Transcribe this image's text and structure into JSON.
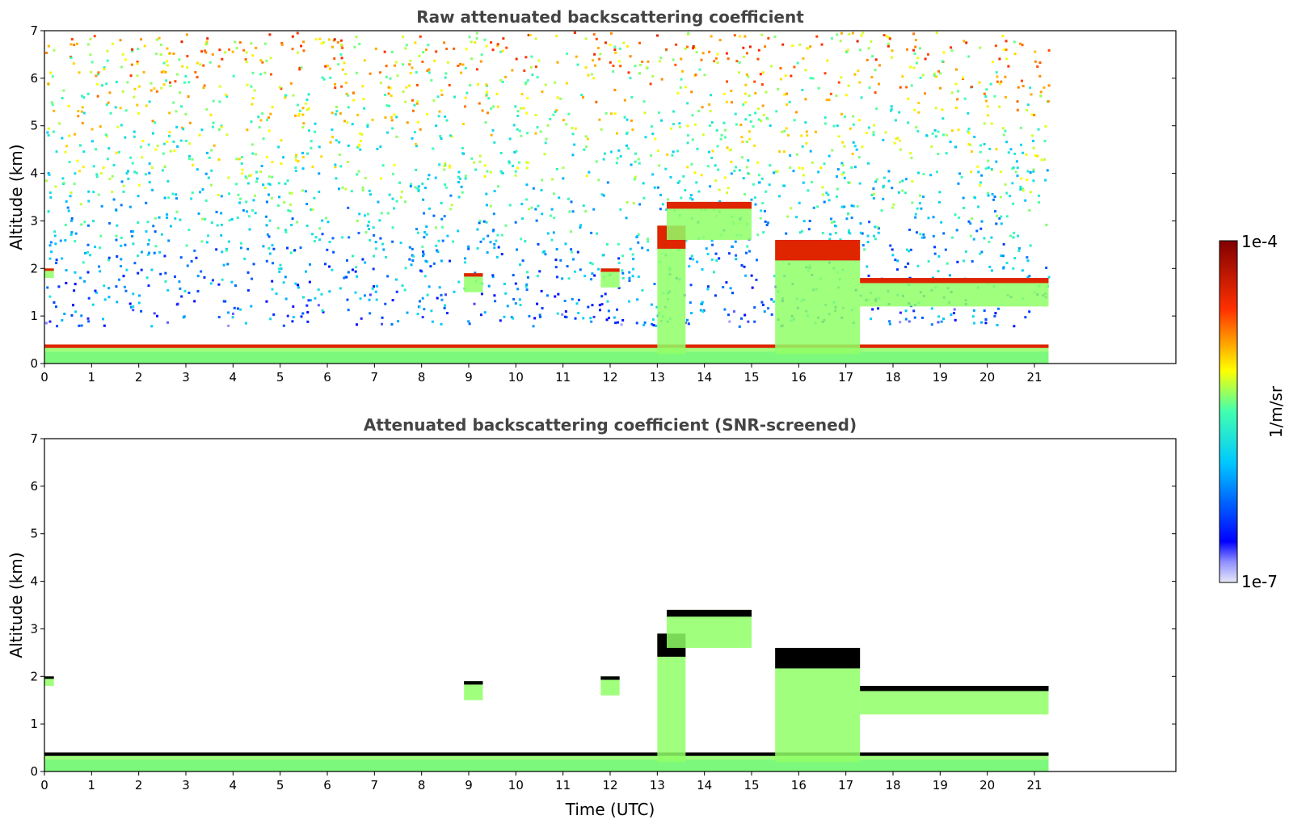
{
  "chart_data": [
    {
      "type": "heatmap",
      "title": "Raw attenuated backscattering coefficient",
      "xlabel": "",
      "ylabel": "Altitude (km)",
      "xlim": [
        0,
        24
      ],
      "ylim": [
        0,
        7
      ],
      "xticks": [
        "0",
        "1",
        "2",
        "3",
        "4",
        "5",
        "6",
        "7",
        "8",
        "9",
        "10",
        "11",
        "12",
        "13",
        "14",
        "15",
        "16",
        "17",
        "18",
        "19",
        "20",
        "21"
      ],
      "yticks": [
        "0",
        "1",
        "2",
        "3",
        "4",
        "5",
        "6",
        "7"
      ],
      "data_end_time": 21.3,
      "grid": false,
      "noise": true,
      "features": [
        {
          "name": "boundary layer",
          "t": [
            0,
            21.3
          ],
          "z": [
            0,
            0.4
          ],
          "level": "high"
        },
        {
          "name": "cloud",
          "t": [
            13.0,
            13.6
          ],
          "z": [
            0.2,
            2.9
          ],
          "level": "high"
        },
        {
          "name": "cloud",
          "t": [
            15.5,
            17.3
          ],
          "z": [
            0.2,
            2.6
          ],
          "level": "high"
        },
        {
          "name": "cloud",
          "t": [
            11.8,
            12.2
          ],
          "z": [
            1.6,
            2.0
          ],
          "level": "high"
        },
        {
          "name": "cloud",
          "t": [
            13.2,
            15.0
          ],
          "z": [
            2.6,
            3.4
          ],
          "level": "high"
        },
        {
          "name": "cloud",
          "t": [
            17.3,
            21.3
          ],
          "z": [
            1.2,
            1.8
          ],
          "level": "high"
        },
        {
          "name": "cloud",
          "t": [
            0,
            0.2
          ],
          "z": [
            1.8,
            2.0
          ],
          "level": "high"
        },
        {
          "name": "cloud",
          "t": [
            8.9,
            9.3
          ],
          "z": [
            1.5,
            1.9
          ],
          "level": "high"
        }
      ]
    },
    {
      "type": "heatmap",
      "title": "Attenuated backscattering coefficient (SNR-screened)",
      "xlabel": "Time (UTC)",
      "ylabel": "Altitude (km)",
      "xlim": [
        0,
        24
      ],
      "ylim": [
        0,
        7
      ],
      "xticks": [
        "0",
        "1",
        "2",
        "3",
        "4",
        "5",
        "6",
        "7",
        "8",
        "9",
        "10",
        "11",
        "12",
        "13",
        "14",
        "15",
        "16",
        "17",
        "18",
        "19",
        "20",
        "21"
      ],
      "yticks": [
        "0",
        "1",
        "2",
        "3",
        "4",
        "5",
        "6",
        "7"
      ],
      "data_end_time": 21.3,
      "grid": false,
      "noise": false,
      "features": [
        {
          "name": "boundary layer",
          "t": [
            0,
            21.3
          ],
          "z": [
            0,
            0.4
          ],
          "level": "high"
        },
        {
          "name": "cloud",
          "t": [
            13.0,
            13.6
          ],
          "z": [
            0.2,
            2.9
          ],
          "level": "high"
        },
        {
          "name": "cloud",
          "t": [
            15.5,
            17.3
          ],
          "z": [
            0.2,
            2.6
          ],
          "level": "high"
        },
        {
          "name": "cloud",
          "t": [
            11.8,
            12.2
          ],
          "z": [
            1.6,
            2.0
          ],
          "level": "high"
        },
        {
          "name": "cloud",
          "t": [
            13.2,
            15.0
          ],
          "z": [
            2.6,
            3.4
          ],
          "level": "high"
        },
        {
          "name": "cloud",
          "t": [
            17.3,
            21.3
          ],
          "z": [
            1.2,
            1.8
          ],
          "level": "high"
        },
        {
          "name": "cloud",
          "t": [
            0,
            0.2
          ],
          "z": [
            1.8,
            2.0
          ],
          "level": "high"
        },
        {
          "name": "cloud",
          "t": [
            8.9,
            9.3
          ],
          "z": [
            1.5,
            1.9
          ],
          "level": "high"
        }
      ]
    }
  ],
  "colorbar": {
    "max_label": "1e-4",
    "min_label": "1e-7",
    "unit_label": "1/m/sr",
    "colormap": "jet",
    "colors": [
      "#e8e8f8",
      "#0000ff",
      "#00c8ff",
      "#ffff00",
      "#ff2000",
      "#800000"
    ]
  }
}
